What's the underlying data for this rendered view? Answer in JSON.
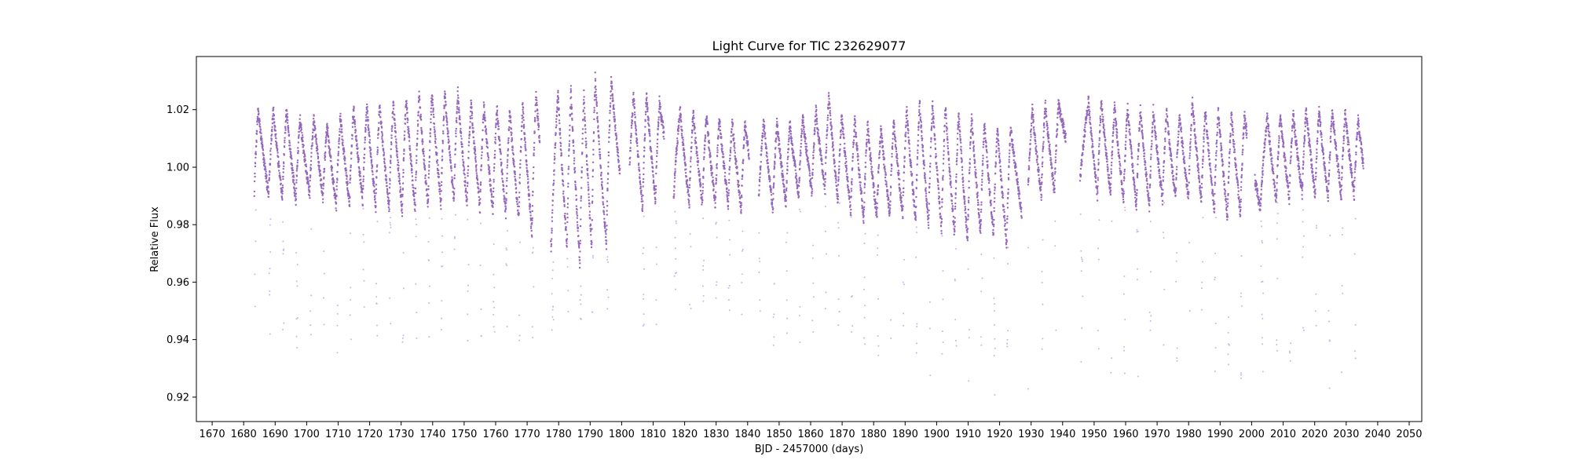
{
  "chart_data": {
    "type": "scatter",
    "title": "Light Curve for TIC 232629077",
    "xlabel": "BJD - 2457000 (days)",
    "ylabel": "Relative Flux",
    "xlim": [
      1665,
      2054
    ],
    "ylim": [
      0.9115,
      1.0385
    ],
    "x_ticks": [
      1670,
      1680,
      1690,
      1700,
      1710,
      1720,
      1730,
      1740,
      1750,
      1760,
      1770,
      1780,
      1790,
      1800,
      1810,
      1820,
      1830,
      1840,
      1850,
      1860,
      1870,
      1880,
      1890,
      1900,
      1910,
      1920,
      1930,
      1940,
      1950,
      1960,
      1970,
      1980,
      1990,
      2000,
      2010,
      2020,
      2030,
      2040,
      2050
    ],
    "y_ticks": [
      0.92,
      0.94,
      0.96,
      0.98,
      1.0,
      1.02
    ],
    "y_tick_labels": [
      "0.92",
      "0.94",
      "0.96",
      "0.98",
      "1.00",
      "1.02"
    ],
    "grid": false,
    "color": "#9467bd",
    "series": [
      {
        "x_range": [
          1683.4,
          2035.5
        ],
        "baseline": 1.0,
        "main_band": [
          0.983,
          1.031
        ],
        "sparse_dips_min": 0.917
      }
    ],
    "cycle_peaks_x": [
      1684.6,
      1689.4,
      1693.6,
      1697.9,
      1702.3,
      1706.5,
      1710.7,
      1714.9,
      1719.1,
      1723.2,
      1727.5,
      1731.6,
      1735.7,
      1739.8,
      1743.9,
      1748.0,
      1752.2,
      1756.3,
      1760.4,
      1764.5,
      1768.6,
      1772.8,
      1779.8,
      1783.9,
      1788.0,
      1791.6,
      1796.7,
      1803.8,
      1807.9,
      1812.0,
      1818.6,
      1822.7,
      1826.9,
      1831.0,
      1835.1,
      1839.2,
      1845.1,
      1849.3,
      1853.4,
      1857.5,
      1861.7,
      1865.8,
      1869.9,
      1874.0,
      1878.1,
      1882.3,
      1886.4,
      1890.5,
      1894.6,
      1898.7,
      1902.8,
      1907.0,
      1911.1,
      1915.2,
      1919.3,
      1923.5,
      1930.4,
      1934.5,
      1938.7,
      1948.2,
      1952.3,
      1956.5,
      1960.6,
      1964.7,
      1968.8,
      1973.0,
      1977.1,
      1981.2,
      1985.3,
      1989.4,
      1993.6,
      1997.7,
      2005.0,
      2009.1,
      2013.2,
      2017.3,
      2021.4,
      2025.6,
      2029.7,
      2033.8
    ],
    "cycle_peak_flux": [
      1.02,
      1.02,
      1.02,
      1.017,
      1.017,
      1.015,
      1.018,
      1.021,
      1.022,
      1.022,
      1.023,
      1.024,
      1.025,
      1.026,
      1.026,
      1.026,
      1.023,
      1.022,
      1.021,
      1.02,
      1.022,
      1.025,
      1.026,
      1.027,
      1.025,
      1.031,
      1.03,
      1.025,
      1.025,
      1.023,
      1.02,
      1.019,
      1.018,
      1.017,
      1.016,
      1.015,
      1.016,
      1.016,
      1.015,
      1.018,
      1.02,
      1.025,
      1.018,
      1.017,
      1.015,
      1.014,
      1.016,
      1.02,
      1.023,
      1.022,
      1.021,
      1.019,
      1.018,
      1.016,
      1.014,
      1.014,
      1.02,
      1.022,
      1.022,
      1.023,
      1.023,
      1.021,
      1.021,
      1.02,
      1.02,
      1.019,
      1.018,
      1.023,
      1.02,
      1.02,
      1.019,
      1.018,
      1.018,
      1.018,
      1.019,
      1.02,
      1.02,
      1.02,
      1.019,
      1.017
    ],
    "cycle_trough_flux": [
      0.99,
      0.989,
      0.988,
      0.99,
      0.989,
      0.986,
      0.987,
      0.988,
      0.986,
      0.985,
      0.984,
      0.985,
      0.986,
      0.987,
      0.988,
      0.987,
      0.985,
      0.984,
      0.983,
      0.982,
      0.977,
      0.971,
      0.972,
      0.966,
      0.972,
      0.973,
      0.976,
      0.985,
      0.988,
      0.99,
      0.987,
      0.987,
      0.987,
      0.987,
      0.985,
      0.983,
      0.985,
      0.987,
      0.99,
      0.991,
      0.992,
      0.988,
      0.984,
      0.982,
      0.982,
      0.983,
      0.983,
      0.981,
      0.98,
      0.978,
      0.976,
      0.974,
      0.977,
      0.976,
      0.973,
      0.974,
      0.99,
      0.991,
      0.991,
      0.99,
      0.991,
      0.988,
      0.986,
      0.986,
      0.988,
      0.989,
      0.989,
      0.988,
      0.985,
      0.982,
      0.983,
      0.985,
      0.988,
      0.989,
      0.99,
      0.99,
      0.989,
      0.99,
      0.99,
      0.99
    ],
    "cycle_dip_min_flux": [
      0.935,
      0.937,
      0.937,
      0.937,
      0.937,
      0.935,
      0.935,
      0.938,
      0.941,
      0.94,
      0.935,
      0.934,
      0.935,
      0.937,
      0.939,
      0.938,
      0.938,
      0.937,
      0.937,
      0.937,
      0.939,
      0.943,
      0.946,
      0.946,
      0.947,
      0.946,
      0.944,
      0.942,
      0.943,
      0.943,
      0.942,
      0.942,
      0.942,
      0.942,
      0.945,
      0.946,
      0.935,
      0.938,
      0.939,
      0.94,
      0.941,
      0.943,
      0.935,
      0.935,
      0.931,
      0.93,
      0.929,
      0.928,
      0.927,
      0.926,
      0.925,
      0.923,
      0.923,
      0.92,
      0.92,
      0.917,
      0.924,
      0.925,
      0.925,
      0.921,
      0.922,
      0.926,
      0.926,
      0.928,
      0.93,
      0.932,
      0.934,
      0.929,
      0.923,
      0.922,
      0.922,
      0.924,
      0.927,
      0.926,
      0.926,
      0.925,
      0.922,
      0.921,
      0.921,
      0.92
    ],
    "gaps_x": [
      [
        1774.0,
        1777.5
      ],
      [
        1799.5,
        1802.5
      ],
      [
        1813.5,
        1816.5
      ],
      [
        1840.5,
        1843.5
      ],
      [
        1927.0,
        1929.0
      ],
      [
        1941.0,
        1945.5
      ],
      [
        1998.5,
        2001.0
      ]
    ]
  }
}
